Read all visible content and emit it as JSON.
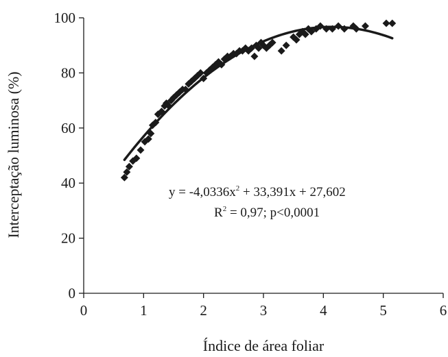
{
  "chart_data": {
    "type": "scatter",
    "title": "",
    "xlabel": "Índice de área foliar",
    "ylabel": "Interceptação luminosa (%)",
    "xlim": [
      0,
      6
    ],
    "ylim": [
      0,
      100
    ],
    "xticks": [
      "0",
      "1",
      "2",
      "3",
      "4",
      "5",
      "6"
    ],
    "yticks": [
      "0",
      "20",
      "40",
      "60",
      "80",
      "100"
    ],
    "grid": false,
    "legend": "none",
    "marker": "diamond",
    "colors": {
      "marker": "#1a1a1a",
      "curve": "#1a1a1a",
      "axis": "#1a1a1a"
    },
    "points": [
      [
        0.68,
        42
      ],
      [
        0.72,
        44
      ],
      [
        0.76,
        46
      ],
      [
        0.82,
        48
      ],
      [
        0.88,
        49
      ],
      [
        0.95,
        52
      ],
      [
        1.02,
        55
      ],
      [
        1.08,
        56
      ],
      [
        1.12,
        58
      ],
      [
        1.15,
        61
      ],
      [
        1.2,
        62
      ],
      [
        1.24,
        65
      ],
      [
        1.3,
        66
      ],
      [
        1.35,
        68
      ],
      [
        1.38,
        69
      ],
      [
        1.42,
        68
      ],
      [
        1.46,
        70
      ],
      [
        1.5,
        71
      ],
      [
        1.55,
        72
      ],
      [
        1.6,
        73
      ],
      [
        1.65,
        74
      ],
      [
        1.7,
        74
      ],
      [
        1.75,
        76
      ],
      [
        1.8,
        77
      ],
      [
        1.85,
        78
      ],
      [
        1.9,
        79
      ],
      [
        1.95,
        80
      ],
      [
        2.0,
        78
      ],
      [
        2.05,
        80
      ],
      [
        2.1,
        81
      ],
      [
        2.15,
        82
      ],
      [
        2.2,
        83
      ],
      [
        2.25,
        84
      ],
      [
        2.3,
        83
      ],
      [
        2.35,
        85
      ],
      [
        2.4,
        86
      ],
      [
        2.45,
        86
      ],
      [
        2.5,
        87
      ],
      [
        2.55,
        87
      ],
      [
        2.6,
        88
      ],
      [
        2.65,
        88
      ],
      [
        2.7,
        89
      ],
      [
        2.75,
        88
      ],
      [
        2.8,
        89
      ],
      [
        2.85,
        86
      ],
      [
        2.88,
        90
      ],
      [
        2.92,
        89
      ],
      [
        2.96,
        91
      ],
      [
        3.0,
        90
      ],
      [
        3.05,
        89
      ],
      [
        3.1,
        90
      ],
      [
        3.15,
        91
      ],
      [
        3.3,
        88
      ],
      [
        3.38,
        90
      ],
      [
        3.5,
        93
      ],
      [
        3.55,
        92
      ],
      [
        3.6,
        94
      ],
      [
        3.65,
        95
      ],
      [
        3.7,
        94
      ],
      [
        3.75,
        96
      ],
      [
        3.8,
        95
      ],
      [
        3.88,
        96
      ],
      [
        3.95,
        97
      ],
      [
        4.05,
        96
      ],
      [
        4.15,
        96
      ],
      [
        4.25,
        97
      ],
      [
        4.35,
        96
      ],
      [
        4.5,
        97
      ],
      [
        4.55,
        96
      ],
      [
        4.7,
        97
      ],
      [
        5.05,
        98
      ],
      [
        5.15,
        98
      ]
    ],
    "fit": {
      "equation_text": "y = -4,0336x",
      "equation_sup": "2",
      "equation_rest": " + 33,391x + 27,602",
      "stats_prefix": "R",
      "stats_sup": "2",
      "stats_rest": " = 0,97; p<0,0001",
      "a": -4.0336,
      "b": 33.391,
      "c": 27.602,
      "x_range": [
        0.68,
        5.15
      ]
    }
  }
}
